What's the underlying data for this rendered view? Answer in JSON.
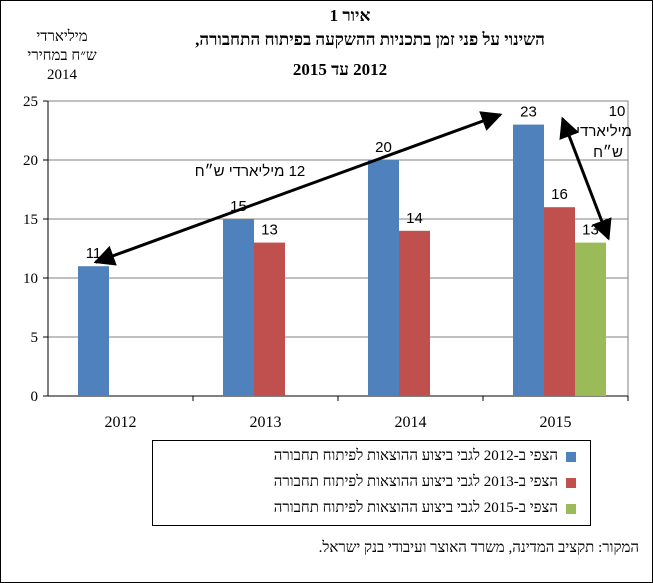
{
  "chart_data": {
    "type": "bar",
    "title": "איור 1",
    "subtitle": "השינוי על פני זמן בתכניות ההשקעה בפיתוח התחבורה,",
    "subtitle2": "2012 עד 2015",
    "ylabel_lines": [
      "מיליארדי",
      "ש״ח במחירי",
      "2014"
    ],
    "categories": [
      "2012",
      "2013",
      "2014",
      "2015"
    ],
    "ylim": [
      0,
      25
    ],
    "yticks": [
      0,
      5,
      10,
      15,
      20,
      25
    ],
    "grid": true,
    "legend_position": "bottom",
    "colors": [
      "#4F81BD",
      "#C0504D",
      "#9BBB59"
    ],
    "series": [
      {
        "name": "הצפי ב-2012 לגבי ביצוע ההוצאות לפיתוח תחבורה",
        "values": [
          11,
          15,
          20,
          23
        ]
      },
      {
        "name": "הצפי ב-2013 לגבי ביצוע ההוצאות לפיתוח תחבורה",
        "values": [
          null,
          13,
          14,
          16
        ]
      },
      {
        "name": "הצפי ב-2015 לגבי ביצוע ההוצאות לפיתוח תחבורה",
        "values": [
          null,
          null,
          null,
          13
        ]
      }
    ],
    "annotations": [
      {
        "id": "a12",
        "text": "12 מיליארדי ש״ח"
      },
      {
        "id": "a10_num",
        "text": "10"
      },
      {
        "id": "a10_unit1",
        "text": "מיליארדי"
      },
      {
        "id": "a10_unit2",
        "text": "ש״ח"
      }
    ]
  },
  "source": "המקור: תקציב המדינה, משרד האוצר ועיבודי בנק ישראל."
}
